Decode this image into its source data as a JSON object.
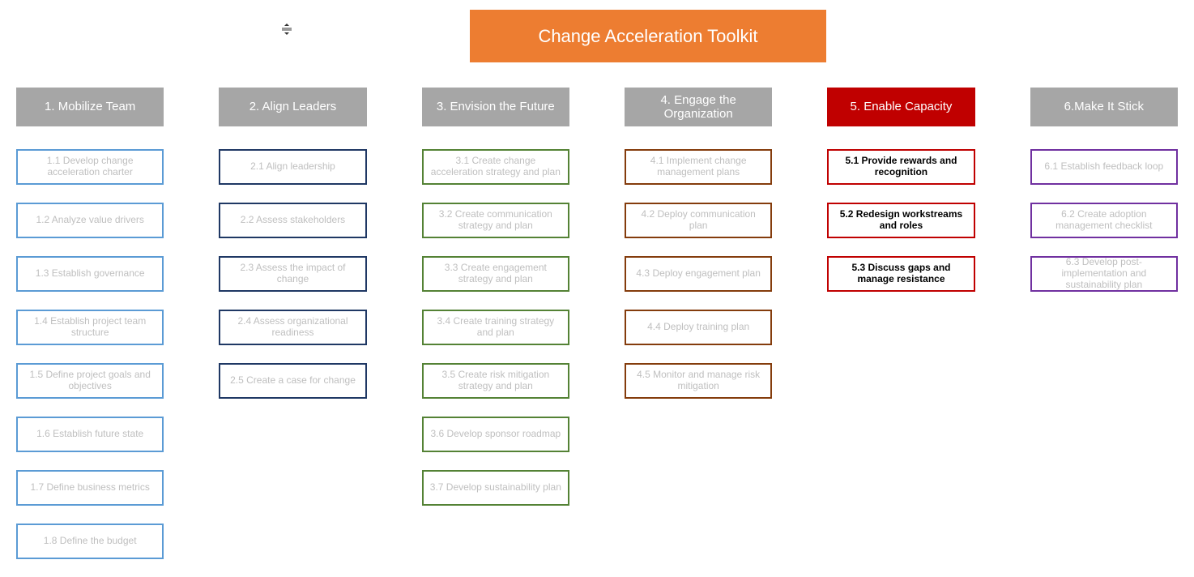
{
  "title": "Change Acceleration Toolkit",
  "title_bg": "#ed7d31",
  "title_color": "#ffffff",
  "default_header_bg": "#a6a6a6",
  "faded_text_color": "#bfbfbf",
  "active_text_color": "#000000",
  "item_height": 44,
  "item_gap": 22,
  "item_border_width": 2,
  "columns": [
    {
      "header": "1. Mobilize Team",
      "header_bg": "#a6a6a6",
      "border_color": "#5b9bd5",
      "active": false,
      "items": [
        "1.1 Develop change acceleration charter",
        "1.2 Analyze value drivers",
        "1.3 Establish governance",
        "1.4 Establish project team structure",
        "1.5 Define project goals and objectives",
        "1.6 Establish future state",
        "1.7 Define business metrics",
        "1.8 Define the budget"
      ]
    },
    {
      "header": "2. Align Leaders",
      "header_bg": "#a6a6a6",
      "border_color": "#1f3864",
      "active": false,
      "items": [
        "2.1 Align leadership",
        "2.2 Assess stakeholders",
        "2.3 Assess the impact of change",
        "2.4 Assess organizational readiness",
        "2.5 Create a case for change"
      ]
    },
    {
      "header": "3. Envision the Future",
      "header_bg": "#a6a6a6",
      "border_color": "#548235",
      "active": false,
      "items": [
        "3.1 Create change acceleration strategy and plan",
        "3.2 Create communication strategy and plan",
        "3.3 Create engagement strategy and plan",
        "3.4 Create training strategy and plan",
        "3.5 Create risk mitigation strategy and plan",
        "3.6 Develop sponsor roadmap",
        "3.7 Develop sustainability plan"
      ]
    },
    {
      "header": "4. Engage the Organization",
      "header_bg": "#a6a6a6",
      "border_color": "#843c0c",
      "active": false,
      "items": [
        "4.1 Implement change management plans",
        "4.2 Deploy communication plan",
        "4.3 Deploy engagement plan",
        "4.4 Deploy training plan",
        "4.5 Monitor and manage risk mitigation"
      ]
    },
    {
      "header": "5. Enable Capacity",
      "header_bg": "#c00000",
      "border_color": "#c00000",
      "active": true,
      "items": [
        "5.1 Provide rewards and recognition",
        "5.2 Redesign workstreams and roles",
        "5.3 Discuss gaps and manage resistance"
      ]
    },
    {
      "header": "6.Make It Stick",
      "header_bg": "#a6a6a6",
      "border_color": "#7030a0",
      "active": false,
      "items": [
        "6.1 Establish feedback loop",
        "6.2 Create adoption management checklist",
        "6.3 Develop post-implementation and sustainability plan"
      ]
    }
  ]
}
